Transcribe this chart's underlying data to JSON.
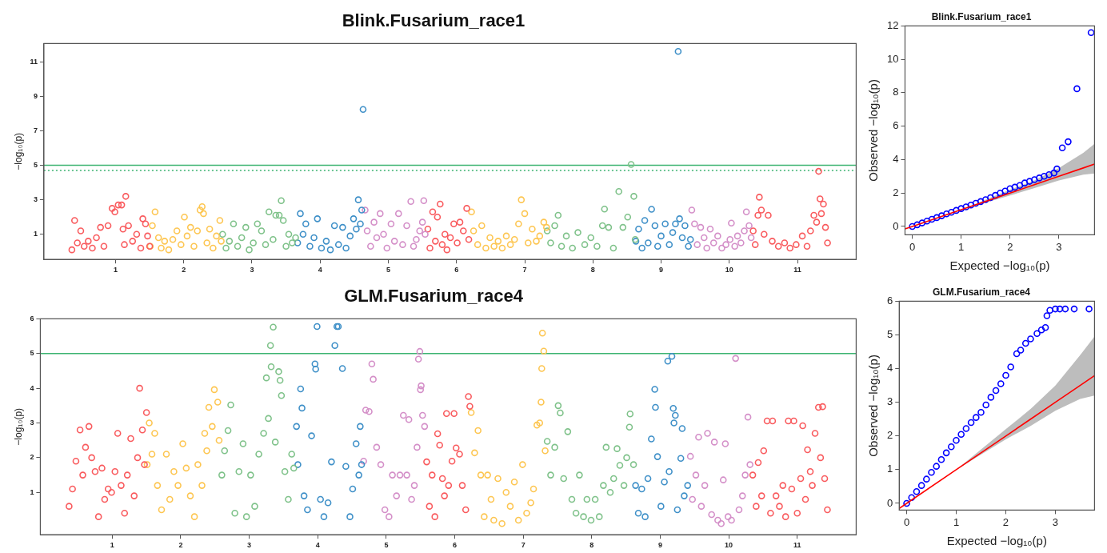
{
  "chart_data": [
    {
      "type": "scatter",
      "title": "Blink.Fusarium_race1",
      "ylabel": "−log₁₀(p)",
      "marker": "circle",
      "xlim": [
        -0.05,
        11.86
      ],
      "ylim": [
        -0.46,
        12.06
      ],
      "xticks": [
        1,
        2,
        3,
        4,
        5,
        6,
        7,
        8,
        9,
        10,
        11
      ],
      "yticks": [
        1,
        3,
        5,
        7,
        9,
        11
      ],
      "ref_lines": [
        {
          "axis": "y",
          "value": 5,
          "color": "#3cb371"
        },
        {
          "axis": "y",
          "value": 4.7,
          "color": "#3cb371",
          "line_style": "dotted"
        }
      ],
      "series": [
        {
          "color": "#f95b5e",
          "x": [
            0.36,
            0.4,
            0.44,
            0.49,
            0.54,
            0.6,
            0.66,
            0.72,
            0.78,
            0.83,
            0.89,
            0.95,
            0.99,
            1.04,
            1.09,
            1.11,
            1.13,
            1.15,
            1.19,
            1.25,
            1.31,
            1.37,
            1.4,
            1.44,
            1.47,
            1.5
          ],
          "values": [
            0.1,
            1.8,
            0.5,
            1.2,
            0.3,
            0.6,
            0.2,
            0.8,
            1.4,
            0.3,
            1.5,
            2.5,
            2.3,
            2.7,
            2.7,
            1.3,
            0.4,
            3.2,
            1.5,
            0.6,
            1.0,
            0.2,
            1.9,
            1.6,
            0.9,
            0.3
          ]
        },
        {
          "color": "#fdc652",
          "x": [
            1.51,
            1.54,
            1.58,
            1.63,
            1.67,
            1.72,
            1.78,
            1.84,
            1.9,
            1.96,
            2.01,
            2.05,
            2.1,
            2.15,
            2.2,
            2.24,
            2.27,
            2.29,
            2.34,
            2.38,
            2.43,
            2.48,
            2.53,
            2.55
          ],
          "values": [
            0.3,
            1.5,
            2.3,
            0.8,
            0.2,
            0.6,
            0.1,
            0.7,
            1.2,
            0.4,
            2.0,
            0.9,
            1.4,
            0.3,
            1.2,
            2.4,
            2.6,
            2.2,
            0.5,
            1.3,
            0.2,
            0.9,
            1.8,
            0.6
          ]
        },
        {
          "color": "#7fc28a",
          "x": [
            2.57,
            2.62,
            2.67,
            2.73,
            2.79,
            2.85,
            2.91,
            2.96,
            3.02,
            3.08,
            3.14,
            3.2,
            3.25,
            3.31,
            3.35,
            3.4,
            3.43,
            3.46,
            3.5,
            3.54,
            3.59,
            3.64
          ],
          "values": [
            1.0,
            0.2,
            0.6,
            1.6,
            0.3,
            0.8,
            1.4,
            0.1,
            0.5,
            1.6,
            1.2,
            0.4,
            2.3,
            0.7,
            2.1,
            2.1,
            2.95,
            1.8,
            0.3,
            1.0,
            0.5,
            0.8
          ]
        },
        {
          "color": "#3f90c8",
          "x": [
            3.67,
            3.71,
            3.75,
            3.79,
            3.85,
            3.91,
            3.96,
            4.02,
            4.09,
            4.15,
            4.21,
            4.27,
            4.33,
            4.38,
            4.44,
            4.49,
            4.53,
            4.56,
            4.59,
            4.61,
            4.63
          ],
          "values": [
            0.5,
            2.2,
            1.0,
            1.6,
            0.3,
            0.8,
            1.9,
            0.2,
            0.6,
            0.1,
            1.5,
            0.4,
            1.4,
            0.2,
            0.9,
            1.9,
            1.3,
            3.0,
            1.6,
            2.4,
            8.24
          ]
        },
        {
          "color": "#d48fc8",
          "x": [
            4.66,
            4.69,
            4.74,
            4.79,
            4.83,
            4.88,
            4.93,
            4.98,
            5.04,
            5.09,
            5.15,
            5.21,
            5.27,
            5.33,
            5.37,
            5.41,
            5.46,
            5.5,
            5.52,
            5.54
          ],
          "values": [
            2.4,
            1.2,
            0.3,
            1.7,
            0.8,
            2.2,
            1.0,
            0.2,
            1.6,
            0.6,
            2.2,
            0.4,
            1.5,
            2.9,
            0.3,
            0.7,
            1.2,
            1.7,
            2.95,
            1.0
          ]
        },
        {
          "color": "#f95b5e",
          "x": [
            5.58,
            5.61,
            5.65,
            5.69,
            5.72,
            5.76,
            5.79,
            5.83,
            5.86,
            5.91,
            5.96,
            6.01,
            6.05,
            6.1,
            6.15,
            6.18
          ],
          "values": [
            1.3,
            0.2,
            2.3,
            0.6,
            2.0,
            2.75,
            0.4,
            1.0,
            0.1,
            0.8,
            1.6,
            0.5,
            1.7,
            1.2,
            2.5,
            0.7
          ]
        },
        {
          "color": "#fdc652",
          "x": [
            6.22,
            6.25,
            6.31,
            6.37,
            6.43,
            6.49,
            6.55,
            6.61,
            6.67,
            6.73,
            6.79,
            6.85,
            6.91,
            6.95,
            7.0,
            7.05,
            7.11,
            7.17,
            7.22,
            7.28,
            7.32
          ],
          "values": [
            2.3,
            1.2,
            0.4,
            1.5,
            0.2,
            0.8,
            0.3,
            0.6,
            0.2,
            0.9,
            0.4,
            0.7,
            1.6,
            3.0,
            2.2,
            0.5,
            1.3,
            0.6,
            0.9,
            1.7,
            1.4
          ]
        },
        {
          "color": "#7fc28a",
          "x": [
            7.33,
            7.38,
            7.44,
            7.49,
            7.54,
            7.61,
            7.7,
            7.78,
            7.88,
            7.97,
            8.06,
            8.14,
            8.17,
            8.23,
            8.3,
            8.38,
            8.44,
            8.51,
            8.56,
            8.6,
            8.62
          ],
          "values": [
            1.2,
            0.5,
            1.5,
            2.1,
            0.3,
            0.9,
            0.2,
            1.1,
            0.4,
            0.8,
            0.3,
            1.5,
            2.46,
            1.4,
            0.2,
            3.48,
            1.4,
            2.0,
            5.05,
            3.2,
            0.7
          ]
        },
        {
          "color": "#3f90c8",
          "x": [
            8.63,
            8.67,
            8.72,
            8.76,
            8.81,
            8.86,
            8.91,
            8.95,
            9.0,
            9.06,
            9.12,
            9.17,
            9.21,
            9.25,
            9.27,
            9.31,
            9.35,
            9.4,
            9.43
          ],
          "values": [
            0.6,
            1.3,
            0.2,
            1.8,
            0.5,
            2.45,
            1.5,
            0.3,
            0.9,
            1.6,
            0.4,
            1.1,
            1.6,
            11.6,
            1.9,
            0.8,
            1.5,
            0.3,
            0.7
          ]
        },
        {
          "color": "#d48fc8",
          "x": [
            9.45,
            9.49,
            9.53,
            9.58,
            9.63,
            9.67,
            9.72,
            9.77,
            9.83,
            9.89,
            9.95,
            10.01,
            10.03,
            10.08,
            10.12,
            10.17,
            10.22,
            10.25,
            10.29,
            10.32
          ],
          "values": [
            2.4,
            1.6,
            0.4,
            1.4,
            0.8,
            0.2,
            1.3,
            0.5,
            0.9,
            0.2,
            0.4,
            0.7,
            1.65,
            0.3,
            0.9,
            0.5,
            1.2,
            2.3,
            1.5,
            0.8
          ]
        },
        {
          "color": "#f95b5e",
          "x": [
            10.35,
            10.38,
            10.42,
            10.44,
            10.47,
            10.51,
            10.57,
            10.63,
            10.72,
            10.81,
            10.89,
            10.98,
            11.07,
            11.14,
            11.19,
            11.24,
            11.28,
            11.31,
            11.33,
            11.35,
            11.38,
            11.41,
            11.44
          ],
          "values": [
            1.2,
            0.4,
            2.1,
            3.15,
            2.4,
            1.0,
            2.1,
            0.6,
            0.3,
            0.5,
            0.2,
            0.4,
            0.9,
            0.3,
            1.2,
            2.1,
            1.7,
            4.65,
            3.05,
            2.2,
            2.75,
            1.4,
            0.5
          ]
        }
      ]
    },
    {
      "type": "scatter",
      "title": "Blink.Fusarium_race1",
      "xlabel": "Expected −log₁₀(p)",
      "ylabel": "Observed −log₁₀(p)",
      "xlim": [
        -0.15,
        3.73
      ],
      "ylim": [
        -0.5,
        12.0
      ],
      "xticks": [
        0,
        1,
        2,
        3
      ],
      "yticks": [
        0,
        2,
        4,
        6,
        8,
        10,
        12
      ],
      "series": [
        {
          "color": "#0000ff",
          "marker": "circle",
          "x": [
            0,
            0.1,
            0.2,
            0.3,
            0.4,
            0.5,
            0.6,
            0.7,
            0.8,
            0.9,
            1.0,
            1.1,
            1.2,
            1.3,
            1.4,
            1.5,
            1.6,
            1.7,
            1.8,
            1.9,
            2.0,
            2.1,
            2.2,
            2.3,
            2.4,
            2.5,
            2.6,
            2.7,
            2.8,
            2.9,
            2.96,
            3.07,
            3.19,
            3.37,
            3.66
          ],
          "values": [
            0,
            0.1,
            0.21,
            0.32,
            0.43,
            0.53,
            0.64,
            0.75,
            0.85,
            0.96,
            1.07,
            1.17,
            1.28,
            1.39,
            1.49,
            1.6,
            1.72,
            1.86,
            2.0,
            2.12,
            2.26,
            2.35,
            2.45,
            2.6,
            2.7,
            2.8,
            2.9,
            3.0,
            3.1,
            3.2,
            3.44,
            4.7,
            5.07,
            8.24,
            11.6
          ]
        },
        {
          "type": "line",
          "color": "#ff0000",
          "x": [
            -0.15,
            0,
            1,
            2,
            2.5,
            3,
            3.5,
            3.73
          ],
          "values": [
            -0.15,
            0,
            1,
            2,
            2.5,
            3,
            3.5,
            3.73
          ],
          "lower": [
            -0.15,
            0,
            1,
            1.85,
            2.3,
            2.75,
            3.1,
            3.17
          ],
          "upper": [
            -0.15,
            0,
            1,
            2.2,
            2.75,
            3.5,
            4.4,
            4.94
          ]
        }
      ]
    },
    {
      "type": "scatter",
      "title": "GLM.Fusarium_race4",
      "ylabel": "−log₁₀(p)",
      "marker": "circle",
      "xlim": [
        -0.05,
        11.86
      ],
      "ylim": [
        -0.22,
        6.0
      ],
      "xticks": [
        1,
        2,
        3,
        4,
        5,
        6,
        7,
        8,
        9,
        10,
        11
      ],
      "yticks": [
        1,
        2,
        3,
        4,
        5,
        6
      ],
      "ref_lines": [
        {
          "axis": "y",
          "value": 5,
          "color": "#3cb371"
        }
      ],
      "series": [
        {
          "color": "#f95b5e",
          "x": [
            0.37,
            0.42,
            0.47,
            0.53,
            0.57,
            0.61,
            0.66,
            0.7,
            0.75,
            0.8,
            0.85,
            0.89,
            0.94,
            0.99,
            1.04,
            1.08,
            1.13,
            1.18,
            1.22,
            1.27,
            1.32,
            1.37,
            1.4,
            1.44,
            1.47,
            1.5
          ],
          "values": [
            0.6,
            1.1,
            1.9,
            2.8,
            1.5,
            2.3,
            2.9,
            2.0,
            1.6,
            0.3,
            1.7,
            0.8,
            1.1,
            1.0,
            1.6,
            2.7,
            1.2,
            0.4,
            1.5,
            2.55,
            0.9,
            2.0,
            4.0,
            2.8,
            1.8,
            3.3
          ]
        },
        {
          "color": "#fdc652",
          "x": [
            1.51,
            1.54,
            1.58,
            1.62,
            1.66,
            1.72,
            1.79,
            1.84,
            1.9,
            1.96,
            2.03,
            2.08,
            2.14,
            2.2,
            2.25,
            2.31,
            2.35,
            2.38,
            2.41,
            2.46,
            2.49,
            2.54,
            2.56
          ],
          "values": [
            1.8,
            3.0,
            2.1,
            2.7,
            1.2,
            0.5,
            2.1,
            0.8,
            1.6,
            1.2,
            2.4,
            1.7,
            0.9,
            0.3,
            1.8,
            1.2,
            2.7,
            2.2,
            3.45,
            2.9,
            3.96,
            3.6,
            2.5
          ]
        },
        {
          "color": "#7fc28a",
          "x": [
            2.6,
            2.64,
            2.69,
            2.73,
            2.79,
            2.85,
            2.91,
            2.96,
            3.02,
            3.08,
            3.14,
            3.21,
            3.25,
            3.28,
            3.31,
            3.32,
            3.35,
            3.38,
            3.43,
            3.45,
            3.47,
            3.52,
            3.57,
            3.62,
            3.65
          ],
          "values": [
            1.5,
            2.2,
            2.78,
            3.52,
            0.4,
            1.6,
            2.4,
            0.3,
            1.5,
            0.6,
            2.1,
            2.7,
            4.3,
            3.13,
            5.23,
            4.62,
            5.76,
            2.45,
            4.48,
            4.23,
            3.79,
            1.6,
            0.8,
            2.1,
            1.7
          ]
        },
        {
          "color": "#3f90c8",
          "x": [
            3.69,
            3.71,
            3.75,
            3.77,
            3.8,
            3.85,
            3.91,
            3.96,
            3.97,
            3.99,
            4.04,
            4.09,
            4.15,
            4.2,
            4.25,
            4.28,
            4.3,
            4.36,
            4.41,
            4.47,
            4.51,
            4.56,
            4.6,
            4.62,
            4.64
          ],
          "values": [
            2.9,
            1.8,
            3.98,
            3.43,
            0.9,
            0.5,
            2.63,
            4.7,
            4.55,
            5.78,
            0.8,
            0.3,
            0.7,
            1.88,
            5.23,
            5.78,
            5.78,
            4.57,
            1.75,
            0.3,
            1.1,
            2.4,
            1.5,
            2.9,
            1.8
          ]
        },
        {
          "color": "#d48fc8",
          "x": [
            4.67,
            4.7,
            4.75,
            4.79,
            4.81,
            4.86,
            4.92,
            4.98,
            5.04,
            5.09,
            5.15,
            5.2,
            5.25,
            5.3,
            5.33,
            5.37,
            5.41,
            5.45,
            5.47,
            5.49,
            5.5,
            5.51,
            5.53,
            5.56
          ],
          "values": [
            1.9,
            3.37,
            3.33,
            4.7,
            4.26,
            2.3,
            1.8,
            0.5,
            0.3,
            1.5,
            0.9,
            1.5,
            3.22,
            1.5,
            3.1,
            0.8,
            1.2,
            2.3,
            4.84,
            5.06,
            3.96,
            4.07,
            3.22,
            2.9
          ]
        },
        {
          "color": "#f95b5e",
          "x": [
            5.59,
            5.63,
            5.67,
            5.71,
            5.75,
            5.78,
            5.82,
            5.85,
            5.88,
            5.91,
            5.96,
            5.99,
            6.02,
            6.07,
            6.11,
            6.16,
            6.2,
            6.22
          ],
          "values": [
            1.88,
            0.6,
            1.5,
            0.3,
            2.69,
            2.36,
            1.4,
            0.9,
            3.27,
            1.2,
            1.9,
            3.27,
            2.28,
            2.1,
            1.2,
            0.5,
            3.76,
            3.48
          ]
        },
        {
          "color": "#fdc652",
          "x": [
            6.24,
            6.29,
            6.34,
            6.38,
            6.43,
            6.48,
            6.53,
            6.57,
            6.63,
            6.69,
            6.75,
            6.81,
            6.87,
            6.93,
            6.99,
            7.05,
            7.11,
            7.15,
            7.2,
            7.24,
            7.26,
            7.27,
            7.28,
            7.3,
            7.32
          ],
          "values": [
            3.3,
            2.14,
            2.78,
            1.5,
            0.3,
            1.5,
            0.8,
            0.2,
            1.4,
            0.1,
            1.0,
            0.6,
            1.3,
            0.2,
            1.8,
            0.4,
            0.7,
            1.1,
            2.94,
            3.0,
            3.6,
            4.57,
            5.59,
            5.07,
            2.2
          ]
        },
        {
          "color": "#7fc28a",
          "x": [
            7.35,
            7.4,
            7.46,
            7.51,
            7.54,
            7.59,
            7.65,
            7.71,
            7.77,
            7.82,
            7.88,
            7.93,
            7.99,
            8.05,
            8.11,
            8.17,
            8.21,
            8.27,
            8.32,
            8.37,
            8.41,
            8.47,
            8.51,
            8.55,
            8.56,
            8.61
          ],
          "values": [
            2.47,
            1.5,
            2.3,
            3.5,
            3.29,
            1.4,
            2.75,
            0.8,
            0.4,
            1.5,
            0.3,
            0.8,
            0.2,
            0.8,
            0.3,
            1.2,
            2.3,
            1.0,
            1.4,
            2.26,
            1.78,
            1.2,
            2.0,
            2.88,
            3.26,
            1.8
          ]
        },
        {
          "color": "#3f90c8",
          "x": [
            8.64,
            8.68,
            8.73,
            8.78,
            8.82,
            8.87,
            8.92,
            8.93,
            8.96,
            9.01,
            9.06,
            9.11,
            9.13,
            9.17,
            9.19,
            9.2,
            9.22,
            9.25,
            9.3,
            9.32,
            9.35,
            9.4
          ],
          "values": [
            1.2,
            0.4,
            1.1,
            0.3,
            1.4,
            2.54,
            3.97,
            3.45,
            2.03,
            0.6,
            1.3,
            4.78,
            1.6,
            4.92,
            3.42,
            3.0,
            3.22,
            0.5,
            1.98,
            2.84,
            0.9,
            1.2
          ]
        },
        {
          "color": "#d48fc8",
          "x": [
            9.44,
            9.47,
            9.52,
            9.56,
            9.6,
            9.65,
            9.69,
            9.75,
            9.79,
            9.84,
            9.89,
            9.92,
            9.95,
            9.99,
            10.04,
            10.1,
            10.15,
            10.2,
            10.24,
            10.28,
            10.31
          ],
          "values": [
            2.04,
            0.8,
            1.5,
            2.59,
            0.6,
            1.2,
            2.7,
            0.36,
            2.45,
            0.2,
            0.1,
            1.36,
            2.4,
            0.3,
            0.2,
            4.86,
            0.5,
            0.9,
            1.5,
            3.17,
            1.8
          ]
        },
        {
          "color": "#f95b5e",
          "x": [
            10.35,
            10.4,
            10.43,
            10.48,
            10.51,
            10.56,
            10.61,
            10.64,
            10.69,
            10.74,
            10.79,
            10.83,
            10.87,
            10.92,
            10.95,
            11.0,
            11.05,
            11.08,
            11.12,
            11.15,
            11.19,
            11.22,
            11.26,
            11.31,
            11.34,
            11.37,
            11.4,
            11.44
          ],
          "values": [
            1.5,
            0.6,
            1.86,
            0.9,
            2.2,
            3.06,
            0.4,
            3.06,
            0.9,
            0.6,
            1.2,
            0.3,
            3.06,
            1.1,
            3.06,
            0.4,
            1.4,
            2.92,
            0.8,
            2.23,
            1.6,
            1.2,
            2.7,
            3.45,
            2.0,
            3.47,
            1.4,
            0.5
          ]
        }
      ]
    },
    {
      "type": "scatter",
      "title": "GLM.Fusarium_race4",
      "xlabel": "Expected −log₁₀(p)",
      "ylabel": "Observed −log₁₀(p)",
      "xlim": [
        -0.15,
        3.79
      ],
      "ylim": [
        -0.2,
        6.0
      ],
      "xticks": [
        0,
        1,
        2,
        3
      ],
      "yticks": [
        0,
        1,
        2,
        3,
        4,
        5,
        6
      ],
      "series": [
        {
          "color": "#0000ff",
          "marker": "circle",
          "x": [
            0,
            0.1,
            0.2,
            0.3,
            0.4,
            0.5,
            0.6,
            0.7,
            0.8,
            0.9,
            1.0,
            1.1,
            1.2,
            1.3,
            1.4,
            1.5,
            1.6,
            1.7,
            1.8,
            1.9,
            2.0,
            2.1,
            2.22,
            2.3,
            2.4,
            2.5,
            2.63,
            2.72,
            2.8,
            2.83,
            2.89,
            3.0,
            3.09,
            3.2,
            3.38,
            3.68
          ],
          "values": [
            0,
            0.17,
            0.35,
            0.53,
            0.72,
            0.92,
            1.1,
            1.3,
            1.5,
            1.68,
            1.87,
            2.05,
            2.22,
            2.4,
            2.55,
            2.7,
            2.92,
            3.15,
            3.35,
            3.55,
            3.8,
            4.05,
            4.44,
            4.55,
            4.75,
            4.88,
            5.04,
            5.15,
            5.22,
            5.57,
            5.73,
            5.77,
            5.77,
            5.77,
            5.77,
            5.77
          ]
        },
        {
          "type": "line",
          "color": "#ff0000",
          "x": [
            -0.15,
            0,
            1,
            2,
            2.5,
            3,
            3.5,
            3.79
          ],
          "values": [
            -0.15,
            0,
            1,
            2,
            2.5,
            3,
            3.5,
            3.79
          ],
          "lower": [
            -0.15,
            0,
            1,
            1.9,
            2.3,
            2.75,
            3.1,
            3.2
          ],
          "upper": [
            -0.15,
            0,
            1,
            2.2,
            2.8,
            3.5,
            4.4,
            4.95
          ]
        }
      ]
    }
  ]
}
